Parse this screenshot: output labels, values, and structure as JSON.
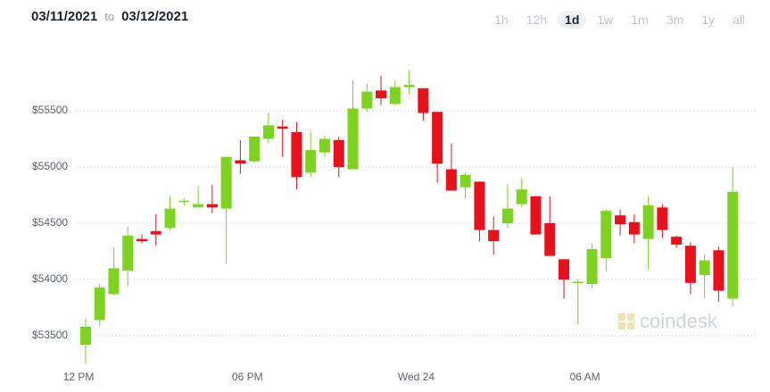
{
  "header": {
    "from": "03/11/2021",
    "to_word": "to",
    "to": "03/12/2021",
    "ranges": [
      "1h",
      "12h",
      "1d",
      "1w",
      "1m",
      "3m",
      "1y",
      "all"
    ],
    "active_range": 2
  },
  "chart_data": {
    "type": "candlestick",
    "watermark": "coindesk",
    "up_color": "#7ed321",
    "down_color": "#e8111b",
    "grid": true,
    "xlim": [
      -2,
      24.1
    ],
    "ylim": [
      53200,
      56000
    ],
    "yticks": [
      {
        "value": 53500,
        "label": "$53500"
      },
      {
        "value": 54000,
        "label": "$54000"
      },
      {
        "value": 54500,
        "label": "$54500"
      },
      {
        "value": 55000,
        "label": "$55000"
      },
      {
        "value": 55500,
        "label": "$55500"
      }
    ],
    "xticks": [
      {
        "value": 0,
        "label": "12 PM"
      },
      {
        "value": 6,
        "label": "06 PM"
      },
      {
        "value": 12,
        "label": "Wed 24"
      },
      {
        "value": 18,
        "label": "06 AM"
      }
    ],
    "x": [
      0.25,
      0.75,
      1.25,
      1.75,
      2.25,
      2.75,
      3.25,
      3.75,
      4.25,
      4.75,
      5.25,
      5.75,
      6.25,
      6.75,
      7.25,
      7.75,
      8.25,
      8.75,
      9.25,
      9.75,
      10.25,
      10.75,
      11.25,
      11.75,
      12.25,
      12.75,
      13.25,
      13.75,
      14.25,
      14.75,
      15.25,
      15.75,
      16.25,
      16.75,
      17.25,
      17.75,
      18.25,
      18.75,
      19.25,
      19.75,
      20.25,
      20.75,
      21.25,
      21.75,
      22.25,
      22.75,
      23.25
    ],
    "open": [
      53420,
      53640,
      53870,
      54080,
      54360,
      54430,
      54460,
      54690,
      54640,
      54670,
      54630,
      55060,
      55050,
      55250,
      55360,
      55310,
      54950,
      55130,
      55240,
      54980,
      55520,
      55680,
      55560,
      55710,
      55700,
      55490,
      54980,
      54820,
      54870,
      54440,
      54500,
      54670,
      54740,
      54500,
      54180,
      53970,
      53960,
      54190,
      54570,
      54510,
      54360,
      54640,
      54380,
      54300,
      54040,
      54260,
      53830
    ],
    "high": [
      53650,
      53960,
      54290,
      54470,
      54400,
      54580,
      54740,
      54720,
      54830,
      54840,
      55090,
      55240,
      55270,
      55480,
      55420,
      55400,
      55310,
      55280,
      55270,
      55770,
      55740,
      55810,
      55770,
      55860,
      55700,
      55490,
      55210,
      54950,
      54870,
      54560,
      54850,
      54900,
      54740,
      54740,
      54180,
      54000,
      54320,
      54620,
      54620,
      54580,
      54740,
      54670,
      54390,
      54330,
      54220,
      54290,
      55000
    ],
    "low": [
      53250,
      53580,
      53860,
      53940,
      54320,
      54300,
      54440,
      54660,
      54640,
      54590,
      54140,
      54940,
      55040,
      55210,
      55090,
      54800,
      54910,
      55090,
      54910,
      54980,
      55490,
      55550,
      55550,
      55650,
      55410,
      54860,
      54790,
      54720,
      54340,
      54220,
      54460,
      54640,
      54400,
      54210,
      53830,
      53600,
      53920,
      54070,
      54390,
      54320,
      54090,
      54370,
      54280,
      53870,
      53830,
      53800,
      53760
    ],
    "close": [
      53580,
      53930,
      54100,
      54390,
      54340,
      54400,
      54630,
      54700,
      54670,
      54640,
      55090,
      55030,
      55270,
      55370,
      55340,
      54910,
      55150,
      55250,
      55000,
      55520,
      55670,
      55610,
      55710,
      55730,
      55480,
      55030,
      54790,
      54930,
      54440,
      54340,
      54630,
      54800,
      54400,
      54210,
      54000,
      53980,
      54270,
      54610,
      54490,
      54400,
      54660,
      54440,
      54310,
      53970,
      54170,
      53900,
      54780
    ]
  }
}
